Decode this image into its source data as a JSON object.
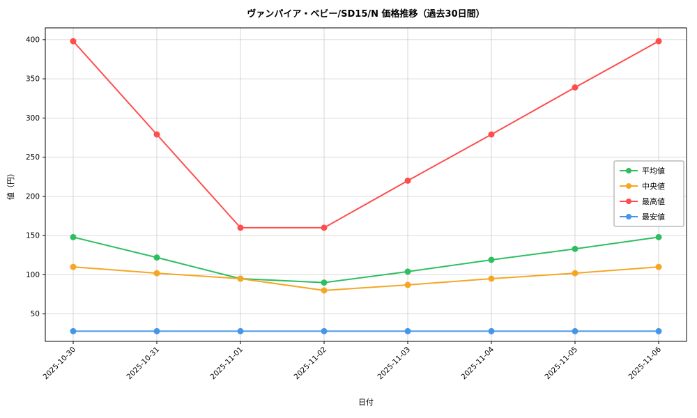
{
  "chart_data": {
    "type": "line",
    "title": "ヴァンパイア・ベビー/SD15/N 価格推移（過去30日間）",
    "xlabel": "日付",
    "ylabel": "値（円）",
    "categories": [
      "2025-10-30",
      "2025-10-31",
      "2025-11-01",
      "2025-11-02",
      "2025-11-03",
      "2025-11-04",
      "2025-11-05",
      "2025-11-06"
    ],
    "series": [
      {
        "name": "平均値",
        "color": "#2dbe60",
        "values": [
          148,
          122,
          95,
          90,
          104,
          119,
          133,
          148
        ]
      },
      {
        "name": "中央値",
        "color": "#f5a623",
        "values": [
          110,
          102,
          95,
          80,
          87,
          95,
          102,
          110
        ]
      },
      {
        "name": "最高値",
        "color": "#ff4d4d",
        "values": [
          398,
          279,
          160,
          160,
          220,
          279,
          339,
          398
        ]
      },
      {
        "name": "最安値",
        "color": "#4596e8",
        "values": [
          28,
          28,
          28,
          28,
          28,
          28,
          28,
          28
        ]
      }
    ],
    "ylim": [
      15,
      415
    ],
    "yticks": [
      50,
      100,
      150,
      200,
      250,
      300,
      350,
      400
    ],
    "grid": true,
    "grid_color": "#cccccc",
    "spine_color": "#000000",
    "legend_position": "center-right",
    "legend_border_color": "#999999"
  }
}
